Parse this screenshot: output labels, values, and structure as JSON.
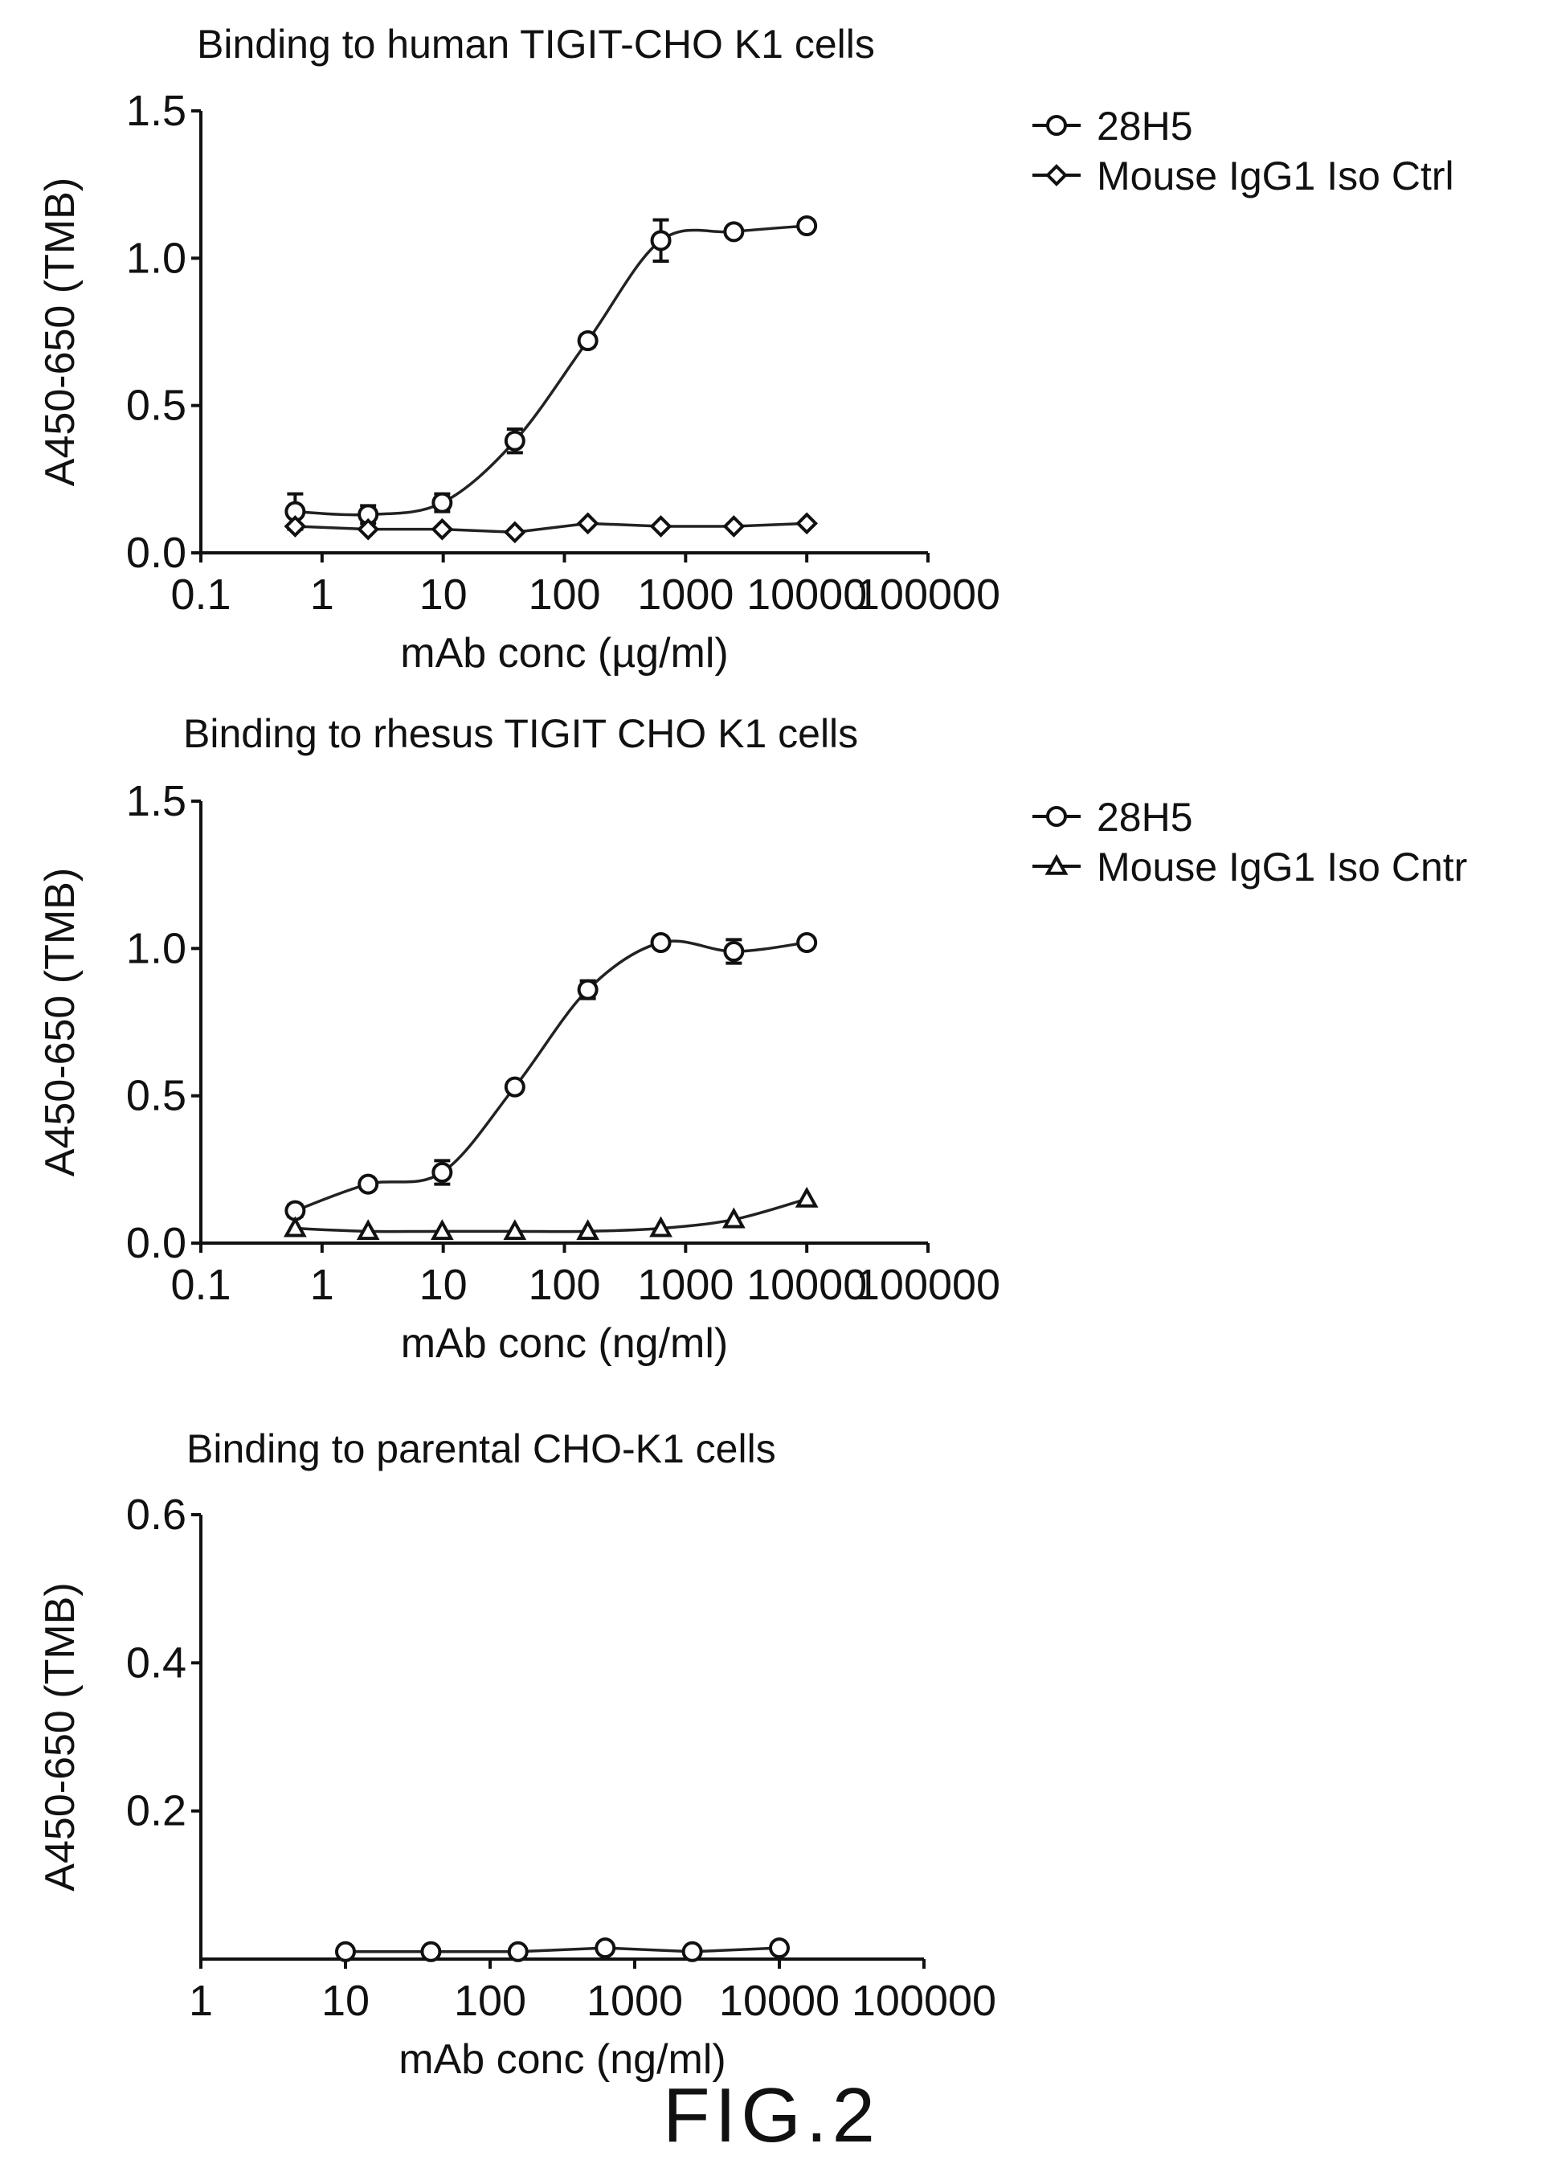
{
  "figure_label": "FIG.2",
  "chart_data": [
    {
      "type": "scatter",
      "title": "Binding to human  TIGIT-CHO K1 cells",
      "xlabel": "mAb conc (µg/ml)",
      "ylabel": "A450-650 (TMB)",
      "xscale": "log",
      "xlim": [
        0.1,
        100000
      ],
      "ylim": [
        0,
        1.5
      ],
      "x_ticks": [
        "0.1",
        "1",
        "10",
        "100",
        "1000",
        "10000",
        "100000"
      ],
      "y_ticks": [
        "0.0",
        "0.5",
        "1.0",
        "1.5"
      ],
      "legend_position": "right",
      "series": [
        {
          "name": "28H5",
          "marker": "circle",
          "fit_curve": true,
          "x": [
            0.6,
            2.4,
            9.8,
            39,
            156,
            625,
            2500,
            10000
          ],
          "y": [
            0.14,
            0.13,
            0.17,
            0.38,
            0.72,
            1.06,
            1.09,
            1.11
          ],
          "error": [
            0.06,
            0.03,
            0.03,
            0.04,
            0.02,
            0.07,
            0.01,
            0.01
          ]
        },
        {
          "name": "Mouse IgG1 Iso Ctrl",
          "marker": "diamond",
          "fit_curve": false,
          "x": [
            0.6,
            2.4,
            9.8,
            39,
            156,
            625,
            2500,
            10000
          ],
          "y": [
            0.09,
            0.08,
            0.08,
            0.07,
            0.1,
            0.09,
            0.09,
            0.1
          ]
        }
      ]
    },
    {
      "type": "scatter",
      "title": "Binding to  rhesus  TIGIT CHO K1 cells",
      "xlabel": "mAb conc (ng/ml)",
      "ylabel": "A450-650 (TMB)",
      "xscale": "log",
      "xlim": [
        0.1,
        100000
      ],
      "ylim": [
        0,
        1.5
      ],
      "x_ticks": [
        "0.1",
        "1",
        "10",
        "100",
        "1000",
        "10000",
        "100000"
      ],
      "y_ticks": [
        "0.0",
        "0.5",
        "1.0",
        "1.5"
      ],
      "legend_position": "right",
      "series": [
        {
          "name": "28H5",
          "marker": "circle",
          "fit_curve": true,
          "x": [
            0.6,
            2.4,
            9.8,
            39,
            156,
            625,
            2500,
            10000
          ],
          "y": [
            0.11,
            0.2,
            0.24,
            0.53,
            0.86,
            1.02,
            0.99,
            1.02
          ],
          "error": [
            0.02,
            0.01,
            0.04,
            0.01,
            0.03,
            0.01,
            0.04,
            0.01
          ]
        },
        {
          "name": "Mouse IgG1 Iso Cntr",
          "marker": "triangle",
          "fit_curve": true,
          "x": [
            0.6,
            2.4,
            9.8,
            39,
            156,
            625,
            2500,
            10000
          ],
          "y": [
            0.05,
            0.04,
            0.04,
            0.04,
            0.04,
            0.05,
            0.08,
            0.15
          ]
        }
      ]
    },
    {
      "type": "scatter",
      "title": "Binding to parental  CHO-K1 cells",
      "xlabel": "mAb conc (ng/ml)",
      "ylabel": "A450-650 (TMB)",
      "xscale": "log",
      "xlim": [
        1,
        100000
      ],
      "ylim": [
        0,
        0.6
      ],
      "x_ticks": [
        "1",
        "10",
        "100",
        "1000",
        "10000",
        "100000"
      ],
      "y_ticks": [
        "0.2",
        "0.4",
        "0.6"
      ],
      "series": [
        {
          "marker": "circle",
          "fit_curve": false,
          "x": [
            10,
            39,
            156,
            625,
            2500,
            10000
          ],
          "y": [
            0.01,
            0.01,
            0.01,
            0.015,
            0.01,
            0.015
          ]
        }
      ]
    }
  ]
}
